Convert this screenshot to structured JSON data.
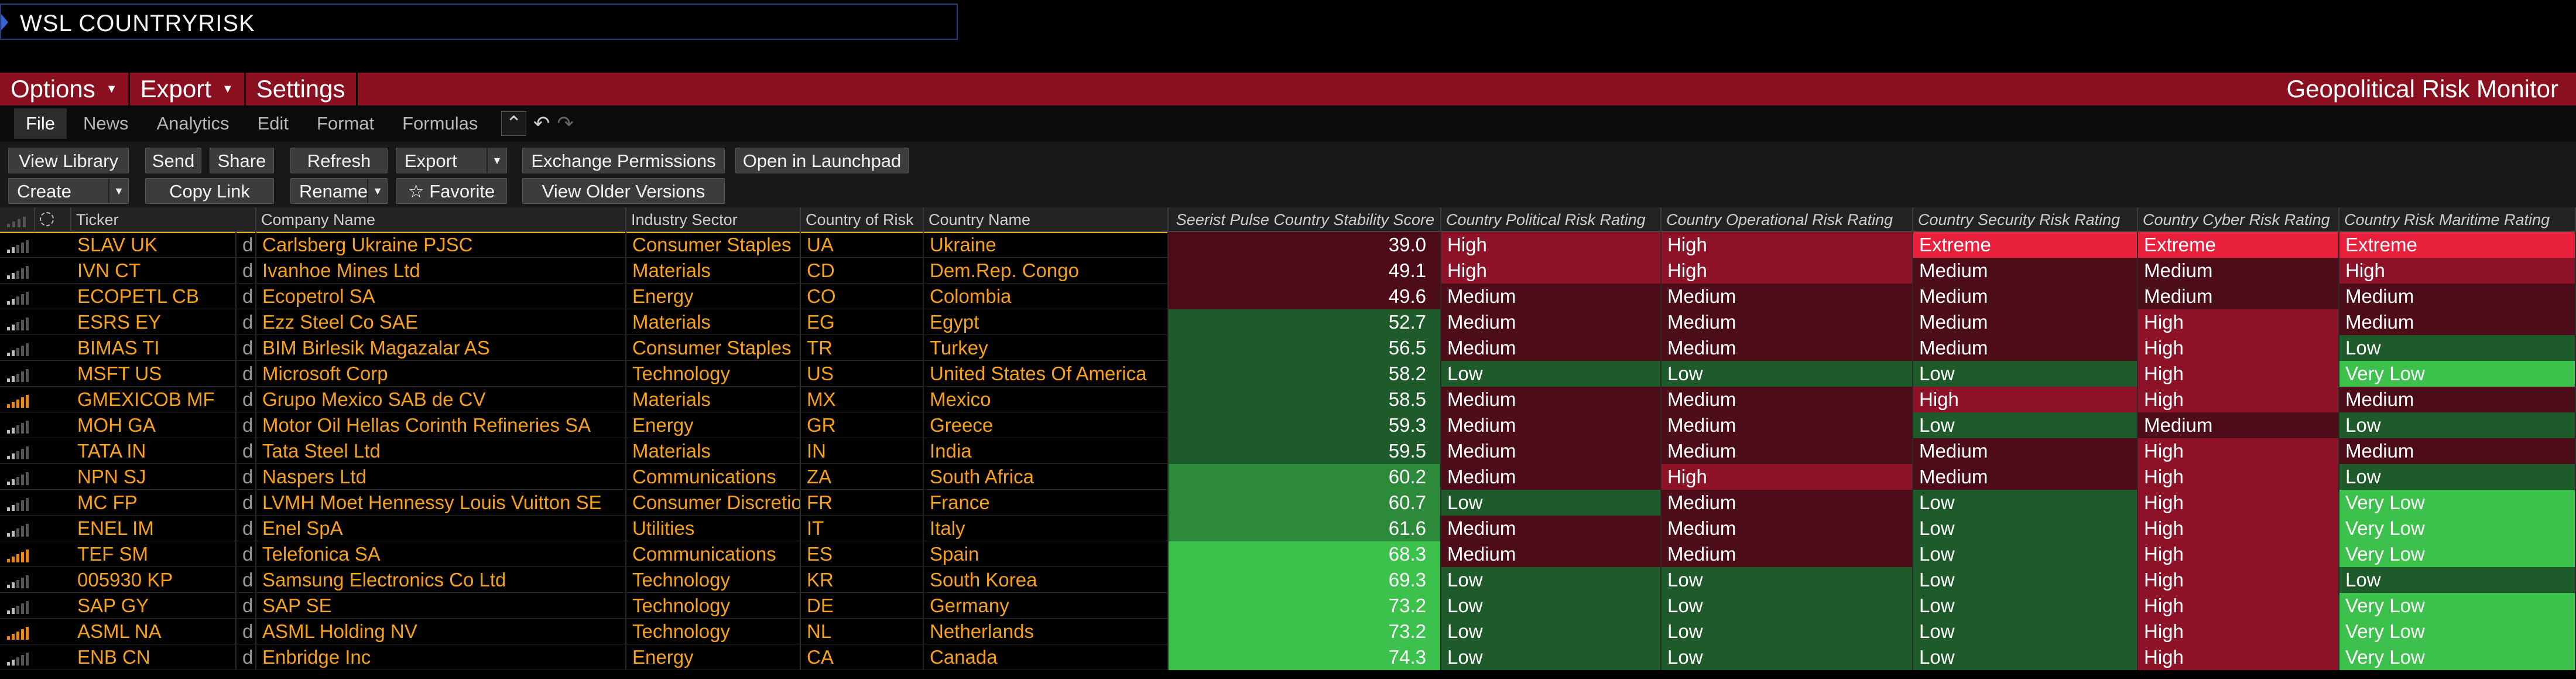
{
  "command": {
    "text": "WSL COUNTRYRISK"
  },
  "menu": {
    "items": [
      {
        "label": "Options",
        "caret": "▼"
      },
      {
        "label": "Export",
        "caret": "▼"
      },
      {
        "label": "Settings",
        "caret": ""
      }
    ],
    "title": "Geopolitical Risk Monitor"
  },
  "tabs": {
    "items": [
      "File",
      "News",
      "Analytics",
      "Edit",
      "Format",
      "Formulas"
    ],
    "active": "File",
    "icons": [
      "collapse-icon",
      "undo-icon",
      "redo-icon"
    ]
  },
  "toolbar": {
    "row1": [
      {
        "label": "View Library"
      },
      {
        "label": "Send"
      },
      {
        "label": "Share"
      },
      {
        "label": "Refresh"
      },
      {
        "label": "Export",
        "split": true
      },
      {
        "label": "Exchange Permissions"
      },
      {
        "label": "Open in Launchpad"
      }
    ],
    "row2": [
      {
        "label": "Create",
        "split": true
      },
      {
        "label": "Copy Link"
      },
      {
        "label": "Rename",
        "split": true
      },
      {
        "label": "☆ Favorite"
      },
      {
        "label": "View Older Versions"
      }
    ]
  },
  "table": {
    "headers": {
      "signal": "",
      "status": "",
      "ticker": "Ticker",
      "company": "Company Name",
      "sector": "Industry Sector",
      "country_code": "Country of Risk",
      "country_name": "Country Name",
      "score": "Seerist Pulse Country Stability Score",
      "political": "Country Political Risk Rating",
      "operational": "Country Operational Risk Rating",
      "security": "Country Security Risk Rating",
      "cyber": "Country Cyber Risk Rating",
      "maritime": "Country Risk Maritime Rating"
    },
    "colors": {
      "Extreme": "#e8203c",
      "High": "#8e1228",
      "Medium": "#4c0c18",
      "Low": "#1e5a2a",
      "Very Low": "#3cc24c",
      "score_red": "#4c0c18",
      "score_green_dark": "#1e5a2a",
      "score_green_mid": "#2d8a3a",
      "score_green_light": "#3cc24c"
    },
    "rows": [
      {
        "signal": 1,
        "ticker": "SLAV UK",
        "d": "d",
        "company": "Carlsberg Ukraine PJSC",
        "sector": "Consumer Staples",
        "cc": "UA",
        "country": "Ukraine",
        "score": "39.0",
        "political": "High",
        "operational": "High",
        "security": "Extreme",
        "cyber": "Extreme",
        "maritime": "Extreme"
      },
      {
        "signal": 1,
        "ticker": "IVN CT",
        "d": "d",
        "company": "Ivanhoe Mines Ltd",
        "sector": "Materials",
        "cc": "CD",
        "country": "Dem.Rep. Congo",
        "score": "49.1",
        "political": "High",
        "operational": "High",
        "security": "Medium",
        "cyber": "Medium",
        "maritime": "High"
      },
      {
        "signal": 1,
        "ticker": "ECOPETL CB",
        "d": "d",
        "company": "Ecopetrol SA",
        "sector": "Energy",
        "cc": "CO",
        "country": "Colombia",
        "score": "49.6",
        "political": "Medium",
        "operational": "Medium",
        "security": "Medium",
        "cyber": "Medium",
        "maritime": "Medium"
      },
      {
        "signal": 1,
        "ticker": "ESRS EY",
        "d": "d",
        "company": "Ezz Steel Co SAE",
        "sector": "Materials",
        "cc": "EG",
        "country": "Egypt",
        "score": "52.7",
        "political": "Medium",
        "operational": "Medium",
        "security": "Medium",
        "cyber": "High",
        "maritime": "Medium"
      },
      {
        "signal": 1,
        "ticker": "BIMAS TI",
        "d": "d",
        "company": "BIM Birlesik Magazalar AS",
        "sector": "Consumer Staples",
        "cc": "TR",
        "country": "Turkey",
        "score": "56.5",
        "political": "Medium",
        "operational": "Medium",
        "security": "Medium",
        "cyber": "High",
        "maritime": "Low"
      },
      {
        "signal": 1,
        "ticker": "MSFT US",
        "d": "d",
        "company": "Microsoft Corp",
        "sector": "Technology",
        "cc": "US",
        "country": "United States Of America",
        "score": "58.2",
        "political": "Low",
        "operational": "Low",
        "security": "Low",
        "cyber": "High",
        "maritime": "Very Low"
      },
      {
        "signal": 2,
        "ticker": "GMEXICOB MF",
        "d": "d",
        "company": "Grupo Mexico SAB de CV",
        "sector": "Materials",
        "cc": "MX",
        "country": "Mexico",
        "score": "58.5",
        "political": "Medium",
        "operational": "Medium",
        "security": "High",
        "cyber": "High",
        "maritime": "Medium"
      },
      {
        "signal": 1,
        "ticker": "MOH GA",
        "d": "d",
        "company": "Motor Oil Hellas Corinth Refineries SA",
        "sector": "Energy",
        "cc": "GR",
        "country": "Greece",
        "score": "59.3",
        "political": "Medium",
        "operational": "Medium",
        "security": "Low",
        "cyber": "Medium",
        "maritime": "Low"
      },
      {
        "signal": 1,
        "ticker": "TATA IN",
        "d": "d",
        "company": "Tata Steel Ltd",
        "sector": "Materials",
        "cc": "IN",
        "country": "India",
        "score": "59.5",
        "political": "Medium",
        "operational": "Medium",
        "security": "Medium",
        "cyber": "High",
        "maritime": "Medium"
      },
      {
        "signal": 1,
        "ticker": "NPN SJ",
        "d": "d",
        "company": "Naspers Ltd",
        "sector": "Communications",
        "cc": "ZA",
        "country": "South Africa",
        "score": "60.2",
        "political": "Medium",
        "operational": "High",
        "security": "Medium",
        "cyber": "High",
        "maritime": "Low"
      },
      {
        "signal": 1,
        "ticker": "MC FP",
        "d": "d",
        "company": "LVMH Moet Hennessy Louis Vuitton SE",
        "sector": "Consumer Discretio",
        "cc": "FR",
        "country": "France",
        "score": "60.7",
        "political": "Low",
        "operational": "Medium",
        "security": "Low",
        "cyber": "High",
        "maritime": "Very Low"
      },
      {
        "signal": 1,
        "ticker": "ENEL IM",
        "d": "d",
        "company": "Enel SpA",
        "sector": "Utilities",
        "cc": "IT",
        "country": "Italy",
        "score": "61.6",
        "political": "Medium",
        "operational": "Medium",
        "security": "Low",
        "cyber": "High",
        "maritime": "Very Low"
      },
      {
        "signal": 2,
        "ticker": "TEF SM",
        "d": "d",
        "company": "Telefonica SA",
        "sector": "Communications",
        "cc": "ES",
        "country": "Spain",
        "score": "68.3",
        "political": "Medium",
        "operational": "Medium",
        "security": "Low",
        "cyber": "High",
        "maritime": "Very Low"
      },
      {
        "signal": 1,
        "ticker": "005930 KP",
        "d": "d",
        "company": "Samsung Electronics Co Ltd",
        "sector": "Technology",
        "cc": "KR",
        "country": "South Korea",
        "score": "69.3",
        "political": "Low",
        "operational": "Low",
        "security": "Low",
        "cyber": "High",
        "maritime": "Low"
      },
      {
        "signal": 1,
        "ticker": "SAP GY",
        "d": "d",
        "company": "SAP SE",
        "sector": "Technology",
        "cc": "DE",
        "country": "Germany",
        "score": "73.2",
        "political": "Low",
        "operational": "Low",
        "security": "Low",
        "cyber": "High",
        "maritime": "Very Low"
      },
      {
        "signal": 2,
        "ticker": "ASML NA",
        "d": "d",
        "company": "ASML Holding NV",
        "sector": "Technology",
        "cc": "NL",
        "country": "Netherlands",
        "score": "73.2",
        "political": "Low",
        "operational": "Low",
        "security": "Low",
        "cyber": "High",
        "maritime": "Very Low"
      },
      {
        "signal": 1,
        "ticker": "ENB CN",
        "d": "d",
        "company": "Enbridge Inc",
        "sector": "Energy",
        "cc": "CA",
        "country": "Canada",
        "score": "74.3",
        "political": "Low",
        "operational": "Low",
        "security": "Low",
        "cyber": "High",
        "maritime": "Very Low"
      }
    ]
  }
}
